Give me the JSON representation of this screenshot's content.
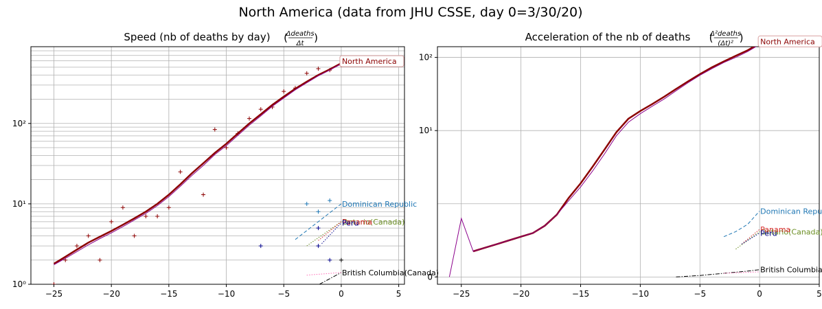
{
  "figure": {
    "title": "North America (data from JHU CSSE, day 0=3/30/20)"
  },
  "chart_data": [
    {
      "type": "line",
      "title": "Speed (nb of deaths by day)",
      "title_formula": {
        "num": "Δdeaths",
        "den": "Δt"
      },
      "xlabel": "",
      "ylabel": "",
      "yscale": "log",
      "xlim": [
        -27,
        5.5
      ],
      "ylim": [
        1,
        900
      ],
      "xticks": [
        -25,
        -20,
        -15,
        -10,
        -5,
        0,
        5
      ],
      "yticks": [
        1,
        10,
        100
      ],
      "ytick_labels": [
        "10⁰",
        "10¹",
        "10²"
      ],
      "grid": true,
      "series": [
        {
          "name": "North America",
          "color": "#8b0000",
          "style": "solid",
          "width": 2.5,
          "x": [
            -25,
            -24,
            -23,
            -22,
            -21,
            -20,
            -19,
            -18,
            -17,
            -16,
            -15,
            -14,
            -13,
            -12,
            -11,
            -10,
            -9,
            -8,
            -7,
            -6,
            -5,
            -4,
            -3,
            -2,
            -1,
            0
          ],
          "y": [
            1.8,
            2.2,
            2.7,
            3.3,
            3.9,
            4.6,
            5.5,
            6.6,
            8.0,
            10.0,
            13.0,
            17.5,
            24,
            32,
            43,
            56,
            75,
            100,
            130,
            170,
            215,
            270,
            330,
            400,
            470,
            560
          ],
          "markers_x": [
            -25,
            -24,
            -23,
            -22,
            -21,
            -20,
            -19,
            -18,
            -17,
            -16,
            -15,
            -14,
            -12,
            -11,
            -10,
            -9,
            -8,
            -7,
            -6,
            -5,
            -4,
            -3,
            -2,
            -1,
            0
          ],
          "markers_y": [
            1.0,
            2.0,
            3.0,
            4.0,
            2.0,
            6.0,
            9.0,
            4.0,
            7.0,
            7.0,
            9.0,
            25,
            13,
            84,
            50,
            75,
            115,
            150,
            160,
            250,
            275,
            420,
            480,
            460,
            530
          ]
        },
        {
          "name": "",
          "color": "#8b008b",
          "style": "solid",
          "width": 1,
          "x": [
            -25,
            -24,
            -23,
            -22,
            -21,
            -20,
            -19,
            -18,
            -17,
            -16,
            -15,
            -14,
            -13,
            -12,
            -11,
            -10,
            -9,
            -8,
            -7,
            -6,
            -5,
            -4,
            -3,
            -2,
            -1,
            0
          ],
          "y": [
            1.75,
            2.1,
            2.55,
            3.1,
            3.7,
            4.35,
            5.2,
            6.3,
            7.6,
            9.5,
            12.3,
            16.5,
            22.5,
            30,
            41,
            53,
            71,
            95,
            124,
            163,
            207,
            262,
            320,
            390,
            460,
            550
          ]
        },
        {
          "name": "Dominican Republic",
          "color": "#1f77b4",
          "style": "dashed",
          "width": 1,
          "x": [
            -4,
            0
          ],
          "y": [
            3.6,
            10.0
          ],
          "markers_x": [
            -3,
            -2,
            -1
          ],
          "markers_y": [
            10,
            8,
            11
          ]
        },
        {
          "name": "Ontario(Canada)",
          "color": "#6b8e23",
          "style": "dotted",
          "width": 1,
          "x": [
            -3,
            0
          ],
          "y": [
            3.0,
            6.0
          ]
        },
        {
          "name": "Panama",
          "color": "#d62728",
          "style": "dotted",
          "width": 1,
          "x": [
            -2,
            0
          ],
          "y": [
            3.5,
            6.0
          ]
        },
        {
          "name": "Peru",
          "color": "#00008b",
          "style": "dotted",
          "width": 1,
          "x": [
            -1.7,
            0
          ],
          "y": [
            3.2,
            5.8
          ],
          "markers_x": [
            -7,
            -2,
            -2,
            -1
          ],
          "markers_y": [
            3,
            5,
            3,
            2
          ]
        },
        {
          "name": "British Columbia(Canada)",
          "color": "#000000",
          "style": "dashdot",
          "width": 1,
          "x": [
            -2.5,
            0
          ],
          "y": [
            0.9,
            1.4
          ],
          "markers_x": [
            0
          ],
          "markers_y": [
            2
          ]
        },
        {
          "name": "",
          "color": "#ff69b4",
          "style": "dotted",
          "width": 1,
          "x": [
            -3,
            0
          ],
          "y": [
            1.3,
            1.4
          ]
        }
      ]
    },
    {
      "type": "line",
      "title": "Acceleration of the nb of deaths",
      "title_formula": {
        "num": "Δ²deaths",
        "den": "(Δt)²"
      },
      "xlabel": "",
      "ylabel": "",
      "yscale": "symlog",
      "xlim": [
        -27,
        5
      ],
      "ylim": [
        -0.1,
        140
      ],
      "xticks": [
        -25,
        -20,
        -15,
        -10,
        -5,
        0,
        5
      ],
      "yticks": [
        0,
        10,
        100
      ],
      "ytick_labels": [
        "0",
        "10¹",
        "10²"
      ],
      "grid": true,
      "series": [
        {
          "name": "North America",
          "color": "#8b0000",
          "style": "solid",
          "width": 2.5,
          "x": [
            -24,
            -23,
            -22,
            -21,
            -20,
            -19,
            -18,
            -17,
            -16,
            -15,
            -14,
            -13,
            -12,
            -11,
            -10,
            -9,
            -8,
            -7,
            -6,
            -5,
            -4,
            -3,
            -2,
            -1,
            0
          ],
          "y": [
            0.35,
            0.4,
            0.45,
            0.5,
            0.55,
            0.6,
            0.7,
            0.85,
            1.2,
            1.9,
            3.2,
            5.5,
            9.5,
            14.5,
            18.5,
            23,
            29,
            37,
            47,
            59,
            73,
            88,
            105,
            125,
            155
          ]
        },
        {
          "name": "",
          "color": "#8b008b",
          "style": "solid",
          "width": 1,
          "x": [
            -26,
            -25,
            -24,
            -23,
            -22,
            -21,
            -20,
            -19,
            -18,
            -17,
            -16,
            -15,
            -14,
            -13,
            -12,
            -11,
            -10,
            -9,
            -8,
            -7,
            -6,
            -5,
            -4,
            -3,
            -2,
            -1,
            0
          ],
          "y": [
            0.0,
            0.8,
            0.35,
            0.4,
            0.45,
            0.5,
            0.55,
            0.6,
            0.7,
            0.85,
            1.1,
            1.7,
            2.8,
            4.8,
            8.5,
            13,
            17,
            21.5,
            27,
            35,
            45,
            57,
            70,
            85,
            100,
            120,
            150
          ]
        },
        {
          "name": "Dominican Republic",
          "color": "#1f77b4",
          "style": "dashed",
          "width": 1,
          "x": [
            -3,
            -2,
            -1,
            0
          ],
          "y": [
            0.55,
            0.62,
            0.72,
            0.9
          ]
        },
        {
          "name": "Ontario(Canada)",
          "color": "#6b8e23",
          "style": "dotted",
          "width": 1,
          "x": [
            -2,
            0
          ],
          "y": [
            0.38,
            0.62
          ]
        },
        {
          "name": "Panama",
          "color": "#d62728",
          "style": "dotted",
          "width": 1,
          "x": [
            -1.5,
            0
          ],
          "y": [
            0.45,
            0.65
          ]
        },
        {
          "name": "Peru",
          "color": "#00008b",
          "style": "dotted",
          "width": 1,
          "x": [
            -1.5,
            0
          ],
          "y": [
            0.45,
            0.6
          ]
        },
        {
          "name": "British Columbia(Canada)",
          "color": "#000000",
          "style": "dashdot",
          "width": 1,
          "x": [
            -7,
            -5,
            -3,
            -1,
            0
          ],
          "y": [
            0.0,
            0.02,
            0.05,
            0.08,
            0.1
          ]
        },
        {
          "name": "",
          "color": "#ff69b4",
          "style": "dotted",
          "width": 1,
          "x": [
            -3,
            0
          ],
          "y": [
            0.05,
            0.07
          ]
        }
      ]
    }
  ]
}
